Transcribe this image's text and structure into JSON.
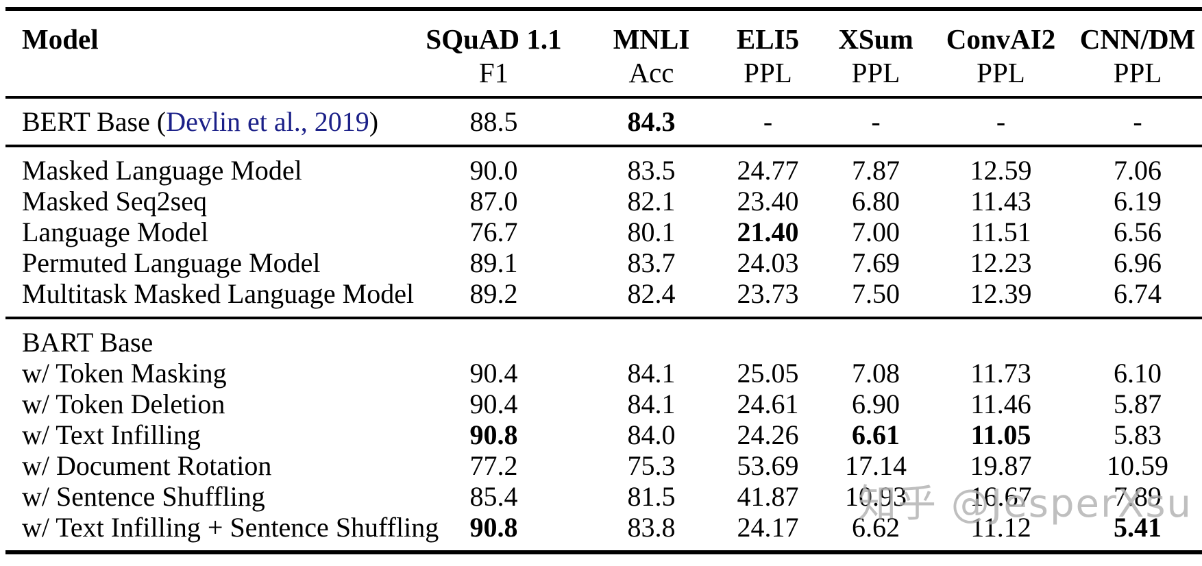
{
  "page": {
    "background_color": "#ffffff",
    "text_color": "#000000",
    "link_color": "#1b2088"
  },
  "watermark": {
    "text": "知乎 @JesperXsu",
    "color": "#b1b1b1"
  },
  "table": {
    "columns": [
      {
        "label": "Model",
        "metric": ""
      },
      {
        "label": "SQuAD 1.1",
        "metric": "F1"
      },
      {
        "label": "MNLI",
        "metric": "Acc"
      },
      {
        "label": "ELI5",
        "metric": "PPL"
      },
      {
        "label": "XSum",
        "metric": "PPL"
      },
      {
        "label": "ConvAI2",
        "metric": "PPL"
      },
      {
        "label": "CNN/DM",
        "metric": "PPL"
      }
    ],
    "sections": [
      {
        "rows": [
          {
            "model": "BERT Base (Devlin et al., 2019)",
            "model_parts": {
              "prefix": "BERT Base (",
              "citation": "Devlin et al., 2019",
              "suffix": ")"
            },
            "values": [
              "88.5",
              "84.3",
              "-",
              "-",
              "-",
              "-"
            ],
            "bold": [
              false,
              true,
              false,
              false,
              false,
              false
            ]
          }
        ]
      },
      {
        "rows": [
          {
            "model": "Masked Language Model",
            "values": [
              "90.0",
              "83.5",
              "24.77",
              "7.87",
              "12.59",
              "7.06"
            ],
            "bold": [
              false,
              false,
              false,
              false,
              false,
              false
            ]
          },
          {
            "model": "Masked Seq2seq",
            "values": [
              "87.0",
              "82.1",
              "23.40",
              "6.80",
              "11.43",
              "6.19"
            ],
            "bold": [
              false,
              false,
              false,
              false,
              false,
              false
            ]
          },
          {
            "model": "Language Model",
            "values": [
              "76.7",
              "80.1",
              "21.40",
              "7.00",
              "11.51",
              "6.56"
            ],
            "bold": [
              false,
              false,
              true,
              false,
              false,
              false
            ]
          },
          {
            "model": "Permuted Language Model",
            "values": [
              "89.1",
              "83.7",
              "24.03",
              "7.69",
              "12.23",
              "6.96"
            ],
            "bold": [
              false,
              false,
              false,
              false,
              false,
              false
            ]
          },
          {
            "model": "Multitask Masked Language Model",
            "values": [
              "89.2",
              "82.4",
              "23.73",
              "7.50",
              "12.39",
              "6.74"
            ],
            "bold": [
              false,
              false,
              false,
              false,
              false,
              false
            ]
          }
        ]
      },
      {
        "rows": [
          {
            "model": "BART Base",
            "values": [
              "",
              "",
              "",
              "",
              "",
              ""
            ],
            "bold": [
              false,
              false,
              false,
              false,
              false,
              false
            ]
          },
          {
            "model": "w/ Token Masking",
            "values": [
              "90.4",
              "84.1",
              "25.05",
              "7.08",
              "11.73",
              "6.10"
            ],
            "bold": [
              false,
              false,
              false,
              false,
              false,
              false
            ]
          },
          {
            "model": "w/ Token Deletion",
            "values": [
              "90.4",
              "84.1",
              "24.61",
              "6.90",
              "11.46",
              "5.87"
            ],
            "bold": [
              false,
              false,
              false,
              false,
              false,
              false
            ]
          },
          {
            "model": "w/ Text Infilling",
            "values": [
              "90.8",
              "84.0",
              "24.26",
              "6.61",
              "11.05",
              "5.83"
            ],
            "bold": [
              true,
              false,
              false,
              true,
              true,
              false
            ]
          },
          {
            "model": "w/ Document Rotation",
            "values": [
              "77.2",
              "75.3",
              "53.69",
              "17.14",
              "19.87",
              "10.59"
            ],
            "bold": [
              false,
              false,
              false,
              false,
              false,
              false
            ]
          },
          {
            "model": "w/ Sentence Shuffling",
            "values": [
              "85.4",
              "81.5",
              "41.87",
              "10.93",
              "16.67",
              "7.89"
            ],
            "bold": [
              false,
              false,
              false,
              false,
              false,
              false
            ]
          },
          {
            "model": "w/ Text Infilling + Sentence Shuffling",
            "values": [
              "90.8",
              "83.8",
              "24.17",
              "6.62",
              "11.12",
              "5.41"
            ],
            "bold": [
              true,
              false,
              false,
              false,
              false,
              true
            ]
          }
        ]
      }
    ]
  }
}
